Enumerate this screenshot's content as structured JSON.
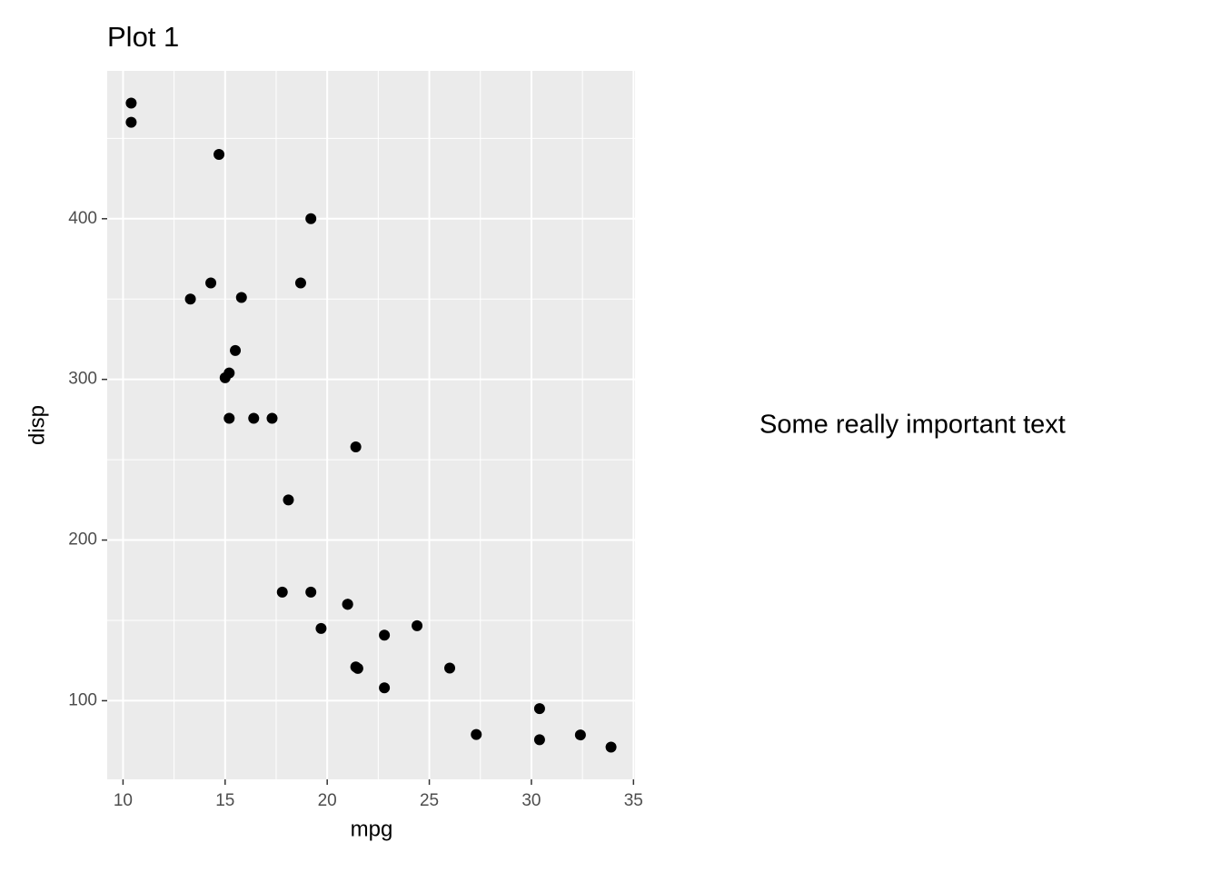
{
  "chart_data": {
    "type": "scatter",
    "title": "Plot 1",
    "x_label": "mpg",
    "y_label": "disp",
    "annotation": "Some really important text",
    "x": [
      21,
      21,
      22.8,
      21.4,
      18.7,
      18.1,
      14.3,
      24.4,
      22.8,
      19.2,
      17.8,
      16.4,
      17.3,
      15.2,
      10.4,
      10.4,
      14.7,
      32.4,
      30.4,
      33.9,
      21.5,
      15.5,
      15.2,
      13.3,
      19.2,
      27.3,
      26,
      30.4,
      15.8,
      19.7,
      15,
      21.4
    ],
    "values": [
      160,
      160,
      108,
      258,
      360,
      225,
      360,
      146.7,
      140.8,
      167.6,
      167.6,
      275.8,
      275.8,
      275.8,
      472,
      460,
      440,
      78.7,
      75.7,
      71.1,
      120.1,
      318,
      304,
      350,
      400,
      79,
      120.3,
      95.1,
      351,
      145,
      301,
      121
    ],
    "color": "#000000",
    "xlim": [
      9.225,
      35.075
    ],
    "ylim": [
      51.055,
      492.045
    ],
    "xticks": [
      10,
      15,
      20,
      25,
      30,
      35
    ],
    "yticks": [
      100,
      200,
      300,
      400
    ],
    "grid": true,
    "minor_grid": true
  }
}
